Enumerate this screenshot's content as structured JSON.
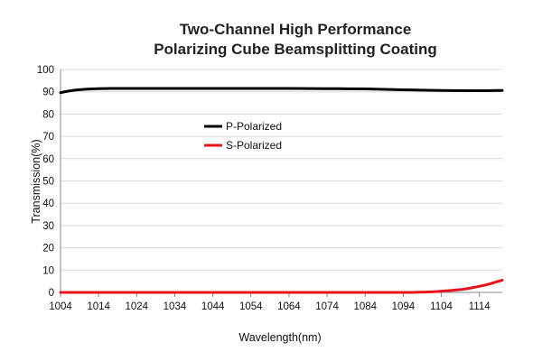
{
  "chart_data": {
    "type": "line",
    "title": [
      "Two-Channel High Performance",
      "Polarizing Cube Beamsplitting Coating"
    ],
    "xlabel": "Wavelength(nm)",
    "ylabel": "Transmission(%)",
    "xlim": [
      1004,
      1120
    ],
    "ylim": [
      0,
      100
    ],
    "xticks": [
      1004,
      1014,
      1024,
      1034,
      1044,
      1054,
      1064,
      1074,
      1084,
      1094,
      1104,
      1114
    ],
    "yticks": [
      0,
      10,
      20,
      30,
      40,
      50,
      60,
      70,
      80,
      90,
      100
    ],
    "grid": "horizontal",
    "legend_position": "center-left",
    "series": [
      {
        "name": "P-Polarized",
        "color": "#000000",
        "x": [
          1004,
          1006,
          1008,
          1011,
          1014,
          1019,
          1024,
          1034,
          1044,
          1054,
          1064,
          1074,
          1084,
          1094,
          1104,
          1114,
          1120
        ],
        "y": [
          89.6,
          90.3,
          90.8,
          91.2,
          91.4,
          91.5,
          91.5,
          91.5,
          91.5,
          91.5,
          91.5,
          91.4,
          91.3,
          90.9,
          90.6,
          90.5,
          90.6
        ]
      },
      {
        "name": "S-Polarized",
        "color": "#e8141b",
        "x": [
          1004,
          1014,
          1024,
          1034,
          1044,
          1054,
          1064,
          1074,
          1084,
          1094,
          1098,
          1102,
          1106,
          1110,
          1113,
          1116,
          1118,
          1120
        ],
        "y": [
          0,
          0,
          0,
          0,
          0,
          0,
          0,
          0,
          0,
          0,
          0.1,
          0.3,
          0.8,
          1.5,
          2.4,
          3.5,
          4.5,
          5.5
        ]
      }
    ]
  }
}
